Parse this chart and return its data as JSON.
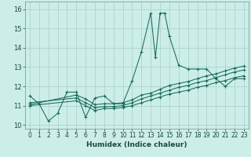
{
  "title": "",
  "xlabel": "Humidex (Indice chaleur)",
  "bg_color": "#cceee8",
  "grid_color": "#aacccc",
  "line_color": "#1a6b5a",
  "xlim": [
    -0.5,
    23.5
  ],
  "ylim": [
    9.8,
    16.4
  ],
  "xticks": [
    0,
    1,
    2,
    3,
    4,
    5,
    6,
    7,
    8,
    9,
    10,
    11,
    12,
    13,
    14,
    15,
    16,
    17,
    18,
    19,
    20,
    21,
    22,
    23
  ],
  "yticks": [
    10,
    11,
    12,
    13,
    14,
    15,
    16
  ],
  "series": [
    {
      "x": [
        0,
        1,
        2,
        3,
        4,
        5,
        6,
        7,
        8,
        9,
        10,
        11,
        12,
        13,
        13.5,
        14,
        14.5,
        15,
        16,
        17,
        18,
        19,
        20,
        21,
        22,
        23
      ],
      "y": [
        11.5,
        11.1,
        10.2,
        10.6,
        11.7,
        11.7,
        10.4,
        11.4,
        11.5,
        11.1,
        11.1,
        12.3,
        13.8,
        15.8,
        13.5,
        15.8,
        15.8,
        14.6,
        13.1,
        12.9,
        12.9,
        12.9,
        12.4,
        12.0,
        12.4,
        12.4
      ]
    },
    {
      "x": [
        0,
        5,
        6,
        7,
        8,
        9,
        10,
        11,
        12,
        13,
        14,
        15,
        16,
        17,
        18,
        19,
        20,
        21,
        22,
        23
      ],
      "y": [
        11.05,
        11.55,
        11.35,
        11.05,
        11.1,
        11.1,
        11.15,
        11.3,
        11.55,
        11.65,
        11.85,
        12.05,
        12.15,
        12.25,
        12.4,
        12.55,
        12.65,
        12.8,
        12.95,
        13.05
      ]
    },
    {
      "x": [
        0,
        5,
        6,
        7,
        8,
        9,
        10,
        11,
        12,
        13,
        14,
        15,
        16,
        17,
        18,
        19,
        20,
        21,
        22,
        23
      ],
      "y": [
        11.0,
        11.25,
        11.0,
        10.75,
        10.85,
        10.85,
        10.9,
        11.0,
        11.15,
        11.3,
        11.45,
        11.6,
        11.7,
        11.8,
        11.95,
        12.05,
        12.2,
        12.3,
        12.45,
        12.55
      ]
    },
    {
      "x": [
        0,
        5,
        6,
        7,
        8,
        9,
        10,
        11,
        12,
        13,
        14,
        15,
        16,
        17,
        18,
        19,
        20,
        21,
        22,
        23
      ],
      "y": [
        11.15,
        11.4,
        11.15,
        10.9,
        10.95,
        10.95,
        11.0,
        11.15,
        11.35,
        11.5,
        11.65,
        11.8,
        11.95,
        12.05,
        12.2,
        12.3,
        12.45,
        12.6,
        12.75,
        12.85
      ]
    }
  ]
}
